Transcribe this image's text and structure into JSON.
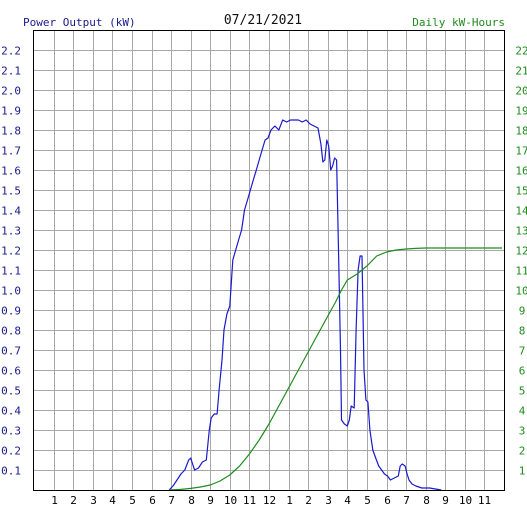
{
  "header": {
    "left_label": "Power Output (kW)",
    "date": "07/21/2021",
    "right_label": "Daily kW-Hours"
  },
  "colors": {
    "power": "#1a1acd",
    "energy": "#1e8c1e",
    "grid": "#a8a8a8",
    "axis_text_left": "#1a1a8c",
    "axis_text_right": "#1e8c1e"
  },
  "chart_data": {
    "type": "line",
    "title": "07/21/2021",
    "xlabel": "",
    "ylabel": "Power Output (kW)",
    "ylabel_right": "Daily kW-Hours",
    "xlim": [
      0,
      24
    ],
    "ylim": [
      0,
      2.3
    ],
    "ylim_right": [
      0,
      23
    ],
    "grid": true,
    "x_ticks": [
      "1",
      "2",
      "3",
      "4",
      "5",
      "6",
      "7",
      "8",
      "9",
      "10",
      "11",
      "12",
      "1",
      "2",
      "3",
      "4",
      "5",
      "6",
      "7",
      "8",
      "9",
      "10",
      "11"
    ],
    "y_ticks_left": [
      "0.1",
      "0.2",
      "0.3",
      "0.4",
      "0.5",
      "0.6",
      "0.7",
      "0.8",
      "0.9",
      "1.0",
      "1.1",
      "1.2",
      "1.3",
      "1.4",
      "1.5",
      "1.6",
      "1.7",
      "1.8",
      "1.9",
      "2.0",
      "2.1",
      "2.2"
    ],
    "y_ticks_right": [
      "1",
      "2",
      "3",
      "4",
      "5",
      "6",
      "7",
      "8",
      "9",
      "10",
      "11",
      "12",
      "13",
      "14",
      "15",
      "16",
      "17",
      "18",
      "19",
      "20",
      "21",
      "22"
    ],
    "series": [
      {
        "name": "Power Output (kW)",
        "axis": "left",
        "points": [
          [
            6.9,
            0
          ],
          [
            7.1,
            0.02
          ],
          [
            7.3,
            0.05
          ],
          [
            7.5,
            0.08
          ],
          [
            7.7,
            0.1
          ],
          [
            7.9,
            0.15
          ],
          [
            8.0,
            0.16
          ],
          [
            8.1,
            0.13
          ],
          [
            8.2,
            0.1
          ],
          [
            8.4,
            0.11
          ],
          [
            8.6,
            0.14
          ],
          [
            8.8,
            0.15
          ],
          [
            8.95,
            0.3
          ],
          [
            9.05,
            0.36
          ],
          [
            9.2,
            0.38
          ],
          [
            9.35,
            0.38
          ],
          [
            9.45,
            0.5
          ],
          [
            9.6,
            0.65
          ],
          [
            9.7,
            0.8
          ],
          [
            9.85,
            0.88
          ],
          [
            10.0,
            0.92
          ],
          [
            10.15,
            1.15
          ],
          [
            10.3,
            1.2
          ],
          [
            10.45,
            1.25
          ],
          [
            10.6,
            1.3
          ],
          [
            10.75,
            1.4
          ],
          [
            10.9,
            1.45
          ],
          [
            11.05,
            1.5
          ],
          [
            11.2,
            1.55
          ],
          [
            11.35,
            1.6
          ],
          [
            11.5,
            1.65
          ],
          [
            11.65,
            1.7
          ],
          [
            11.8,
            1.75
          ],
          [
            11.95,
            1.76
          ],
          [
            12.1,
            1.8
          ],
          [
            12.3,
            1.82
          ],
          [
            12.5,
            1.8
          ],
          [
            12.7,
            1.85
          ],
          [
            12.9,
            1.84
          ],
          [
            13.1,
            1.85
          ],
          [
            13.3,
            1.85
          ],
          [
            13.5,
            1.85
          ],
          [
            13.7,
            1.84
          ],
          [
            13.9,
            1.85
          ],
          [
            14.1,
            1.83
          ],
          [
            14.3,
            1.82
          ],
          [
            14.5,
            1.81
          ],
          [
            14.65,
            1.73
          ],
          [
            14.75,
            1.64
          ],
          [
            14.85,
            1.65
          ],
          [
            14.95,
            1.75
          ],
          [
            15.05,
            1.72
          ],
          [
            15.15,
            1.6
          ],
          [
            15.25,
            1.62
          ],
          [
            15.35,
            1.66
          ],
          [
            15.45,
            1.65
          ],
          [
            15.55,
            1.2
          ],
          [
            15.65,
            0.7
          ],
          [
            15.7,
            0.35
          ],
          [
            15.85,
            0.33
          ],
          [
            16.0,
            0.32
          ],
          [
            16.1,
            0.35
          ],
          [
            16.2,
            0.42
          ],
          [
            16.35,
            0.41
          ],
          [
            16.45,
            0.8
          ],
          [
            16.55,
            1.1
          ],
          [
            16.65,
            1.17
          ],
          [
            16.75,
            1.17
          ],
          [
            16.85,
            0.6
          ],
          [
            16.95,
            0.45
          ],
          [
            17.05,
            0.44
          ],
          [
            17.15,
            0.3
          ],
          [
            17.3,
            0.2
          ],
          [
            17.45,
            0.16
          ],
          [
            17.6,
            0.12
          ],
          [
            17.75,
            0.1
          ],
          [
            17.9,
            0.08
          ],
          [
            18.05,
            0.07
          ],
          [
            18.2,
            0.05
          ],
          [
            18.4,
            0.06
          ],
          [
            18.6,
            0.07
          ],
          [
            18.7,
            0.12
          ],
          [
            18.8,
            0.13
          ],
          [
            18.95,
            0.12
          ],
          [
            19.05,
            0.08
          ],
          [
            19.15,
            0.05
          ],
          [
            19.3,
            0.03
          ],
          [
            19.5,
            0.02
          ],
          [
            19.8,
            0.01
          ],
          [
            20.2,
            0.01
          ],
          [
            20.8,
            0
          ]
        ]
      },
      {
        "name": "Daily kW-Hours",
        "axis": "right",
        "points": [
          [
            6.9,
            0
          ],
          [
            7.5,
            0.03
          ],
          [
            8.0,
            0.08
          ],
          [
            8.5,
            0.15
          ],
          [
            9.0,
            0.25
          ],
          [
            9.5,
            0.45
          ],
          [
            10.0,
            0.75
          ],
          [
            10.5,
            1.2
          ],
          [
            11.0,
            1.8
          ],
          [
            11.5,
            2.5
          ],
          [
            12.0,
            3.3
          ],
          [
            12.5,
            4.2
          ],
          [
            13.0,
            5.1
          ],
          [
            13.5,
            6.0
          ],
          [
            14.0,
            6.9
          ],
          [
            14.5,
            7.8
          ],
          [
            15.0,
            8.7
          ],
          [
            15.4,
            9.4
          ],
          [
            15.7,
            10.0
          ],
          [
            16.0,
            10.5
          ],
          [
            16.5,
            10.8
          ],
          [
            17.0,
            11.2
          ],
          [
            17.5,
            11.7
          ],
          [
            18.0,
            11.9
          ],
          [
            18.5,
            12.0
          ],
          [
            19.0,
            12.05
          ],
          [
            19.5,
            12.08
          ],
          [
            20.0,
            12.1
          ],
          [
            21.0,
            12.1
          ],
          [
            22.0,
            12.1
          ],
          [
            23.0,
            12.1
          ],
          [
            23.9,
            12.1
          ]
        ]
      }
    ]
  }
}
